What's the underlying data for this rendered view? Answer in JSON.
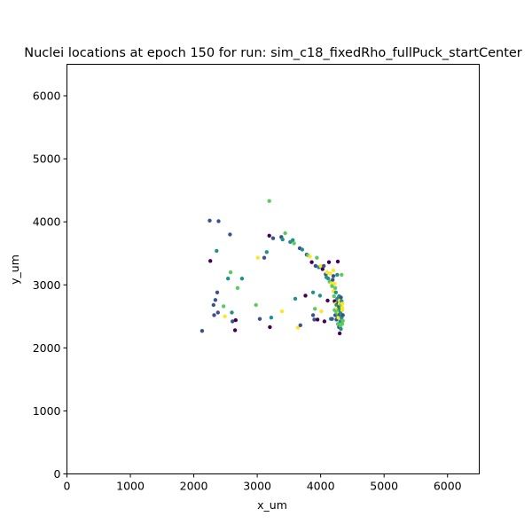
{
  "chart_data": {
    "type": "scatter",
    "title": "Nuclei locations at epoch 150 for run: sim_c18_fixedRho_fullPuck_startCenter",
    "xlabel": "x_um",
    "ylabel": "y_um",
    "xlim": [
      0,
      6500
    ],
    "ylim": [
      0,
      6500
    ],
    "x_ticks": [
      0,
      1000,
      2000,
      3000,
      4000,
      5000,
      6000
    ],
    "y_ticks": [
      0,
      1000,
      2000,
      3000,
      4000,
      5000,
      6000
    ],
    "grid": false,
    "legend": "none",
    "colormap": "viridis",
    "colors": {
      "c0": "#440154",
      "c1": "#3b528b",
      "c2": "#21918c",
      "c3": "#5ec962",
      "c4": "#fde725"
    },
    "points": [
      [
        2130,
        2270,
        1
      ],
      [
        2250,
        4020,
        1
      ],
      [
        2260,
        3380,
        0
      ],
      [
        2310,
        2680,
        1
      ],
      [
        2320,
        2520,
        1
      ],
      [
        2340,
        2760,
        1
      ],
      [
        2360,
        3540,
        2
      ],
      [
        2370,
        2880,
        1
      ],
      [
        2380,
        2560,
        1
      ],
      [
        2390,
        4010,
        1
      ],
      [
        2470,
        2660,
        3
      ],
      [
        2490,
        2500,
        4
      ],
      [
        2540,
        3100,
        2
      ],
      [
        2570,
        3800,
        1
      ],
      [
        2580,
        3200,
        3
      ],
      [
        2600,
        2560,
        2
      ],
      [
        2610,
        2420,
        1
      ],
      [
        2650,
        2280,
        0
      ],
      [
        2660,
        2440,
        0
      ],
      [
        2690,
        2950,
        3
      ],
      [
        2760,
        3100,
        2
      ],
      [
        2980,
        2680,
        3
      ],
      [
        3010,
        3430,
        4
      ],
      [
        3040,
        2460,
        1
      ],
      [
        3110,
        3430,
        1
      ],
      [
        3150,
        3520,
        2
      ],
      [
        3190,
        3780,
        0
      ],
      [
        3190,
        4330,
        3
      ],
      [
        3200,
        2330,
        0
      ],
      [
        3220,
        2480,
        2
      ],
      [
        3250,
        3740,
        1
      ],
      [
        3380,
        3760,
        1
      ],
      [
        3390,
        2580,
        4
      ],
      [
        3400,
        3720,
        2
      ],
      [
        3440,
        3820,
        3
      ],
      [
        3520,
        3680,
        2
      ],
      [
        3560,
        3710,
        2
      ],
      [
        3580,
        3660,
        3
      ],
      [
        3600,
        2780,
        2
      ],
      [
        3640,
        2320,
        4
      ],
      [
        3670,
        3580,
        1
      ],
      [
        3680,
        2360,
        1
      ],
      [
        3710,
        3560,
        2
      ],
      [
        3760,
        2830,
        0
      ],
      [
        3780,
        3480,
        1
      ],
      [
        3800,
        3470,
        3
      ],
      [
        3830,
        3450,
        4
      ],
      [
        3860,
        3360,
        0
      ],
      [
        3880,
        2880,
        2
      ],
      [
        3880,
        2520,
        1
      ],
      [
        3900,
        2450,
        1
      ],
      [
        3910,
        2620,
        3
      ],
      [
        3920,
        3300,
        1
      ],
      [
        3940,
        3430,
        3
      ],
      [
        3950,
        2450,
        0
      ],
      [
        3970,
        3280,
        2
      ],
      [
        3990,
        2830,
        2
      ],
      [
        4000,
        3300,
        4
      ],
      [
        4010,
        2580,
        4
      ],
      [
        4030,
        3250,
        0
      ],
      [
        4050,
        3300,
        1
      ],
      [
        4060,
        2420,
        0
      ],
      [
        4080,
        3170,
        1
      ],
      [
        4090,
        3120,
        2
      ],
      [
        4100,
        3200,
        4
      ],
      [
        4110,
        2750,
        0
      ],
      [
        4120,
        3100,
        2
      ],
      [
        4130,
        3360,
        0
      ],
      [
        4140,
        3050,
        3
      ],
      [
        4150,
        3180,
        4
      ],
      [
        4160,
        2460,
        2
      ],
      [
        4170,
        3020,
        4
      ],
      [
        4180,
        2980,
        3
      ],
      [
        4180,
        2460,
        1
      ],
      [
        4190,
        3080,
        1
      ],
      [
        4200,
        2900,
        4
      ],
      [
        4200,
        3230,
        4
      ],
      [
        4210,
        2820,
        3
      ],
      [
        4220,
        2740,
        0
      ],
      [
        4220,
        2600,
        3
      ],
      [
        4230,
        2950,
        3
      ],
      [
        4230,
        2520,
        1
      ],
      [
        4240,
        2700,
        4
      ],
      [
        4240,
        2880,
        2
      ],
      [
        4250,
        2680,
        2
      ],
      [
        4250,
        2560,
        3
      ],
      [
        4250,
        2450,
        1
      ],
      [
        4260,
        2780,
        2
      ],
      [
        4260,
        2630,
        4
      ],
      [
        4260,
        2500,
        2
      ],
      [
        4270,
        3370,
        0
      ],
      [
        4270,
        2380,
        3
      ],
      [
        4280,
        2720,
        1
      ],
      [
        4280,
        2600,
        3
      ],
      [
        4280,
        2480,
        4
      ],
      [
        4290,
        2820,
        2
      ],
      [
        4290,
        2560,
        4
      ],
      [
        4290,
        2650,
        1
      ],
      [
        4290,
        2330,
        1
      ],
      [
        4300,
        2230,
        0
      ],
      [
        4300,
        2750,
        4
      ],
      [
        4300,
        2700,
        4
      ],
      [
        4300,
        2620,
        2
      ],
      [
        4300,
        2530,
        1
      ],
      [
        4310,
        2580,
        2
      ],
      [
        4310,
        2420,
        2
      ],
      [
        4310,
        2350,
        3
      ],
      [
        4320,
        2800,
        1
      ],
      [
        4320,
        2680,
        3
      ],
      [
        4320,
        2540,
        2
      ],
      [
        4320,
        2300,
        2
      ],
      [
        4330,
        3160,
        3
      ],
      [
        4330,
        2480,
        2
      ],
      [
        4330,
        2740,
        2
      ],
      [
        4340,
        2380,
        3
      ],
      [
        4340,
        2640,
        4
      ],
      [
        4340,
        2600,
        4
      ],
      [
        4340,
        2700,
        4
      ],
      [
        4350,
        2520,
        1
      ],
      [
        4350,
        2430,
        3
      ],
      [
        4220,
        3020,
        4
      ],
      [
        4260,
        3160,
        2
      ],
      [
        4200,
        3140,
        1
      ]
    ]
  }
}
